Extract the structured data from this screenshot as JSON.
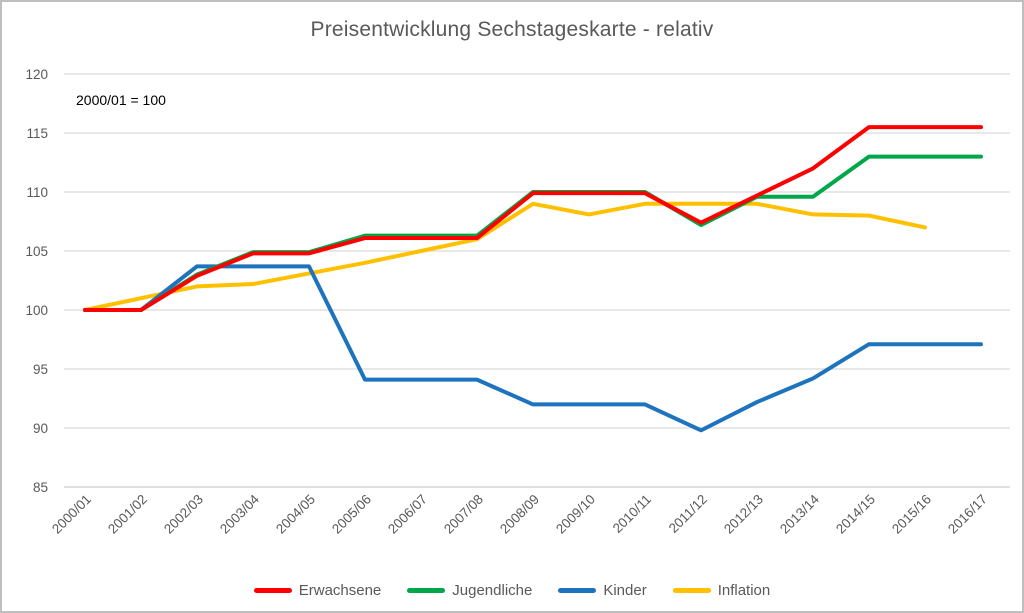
{
  "chart_data": {
    "type": "line",
    "title": "Preisentwicklung Sechstageskarte - relativ",
    "annotation": "2000/01 = 100",
    "categories": [
      "2000/01",
      "2001/02",
      "2002/03",
      "2003/04",
      "2004/05",
      "2005/06",
      "2006/07",
      "2007/08",
      "2008/09",
      "2009/10",
      "2010/11",
      "2011/12",
      "2012/13",
      "2013/14",
      "2014/15",
      "2015/16",
      "2016/17"
    ],
    "series": [
      {
        "name": "Erwachsene",
        "color": "#ff0000",
        "values": [
          100,
          100,
          102.9,
          104.8,
          104.8,
          106.1,
          106.1,
          106.1,
          109.9,
          109.9,
          109.9,
          107.4,
          109.7,
          112,
          115.5,
          115.5,
          115.5
        ]
      },
      {
        "name": "Jugendliche",
        "color": "#00a64a",
        "values": [
          100,
          100,
          103,
          104.9,
          104.9,
          106.3,
          106.3,
          106.3,
          110,
          110,
          110,
          107.2,
          109.6,
          109.6,
          113,
          113,
          113
        ]
      },
      {
        "name": "Kinder",
        "color": "#1e73be",
        "values": [
          100,
          100,
          103.7,
          103.7,
          103.7,
          94.1,
          94.1,
          94.1,
          92,
          92,
          92,
          89.8,
          92.2,
          94.2,
          97.1,
          97.1,
          97.1
        ]
      },
      {
        "name": "Inflation",
        "color": "#ffc000",
        "values": [
          100,
          101,
          102,
          102.2,
          103.1,
          104,
          105,
          106,
          109,
          108.1,
          109,
          109,
          109,
          108.1,
          108,
          107,
          null
        ]
      }
    ],
    "yticks": [
      85,
      90,
      95,
      100,
      105,
      110,
      115,
      120
    ],
    "ylim": [
      85,
      120
    ],
    "xlabel": "",
    "ylabel": "",
    "grid": "horizontal",
    "legend_position": "bottom"
  },
  "style": {
    "title_color": "#595959",
    "axis_text_color": "#595959",
    "annotation_color": "#000000",
    "gridline_color": "#d9d9d9",
    "axisline_color": "#cdcdcd",
    "border_color": "#bfbfbf",
    "background": "#ffffff"
  }
}
